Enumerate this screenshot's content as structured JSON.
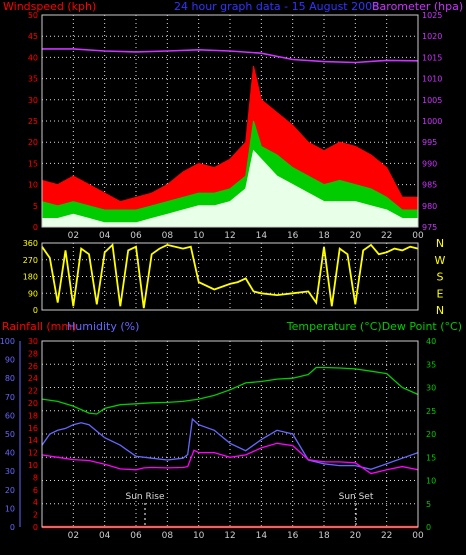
{
  "chart_data": [
    {
      "type": "area",
      "title": "24 hour graph data - 15 August 2008",
      "ylabel_left": "Windspeed (kph)",
      "ylabel_right": "Barometer (hpa)",
      "x_ticks": [
        "02",
        "04",
        "06",
        "08",
        "10",
        "12",
        "14",
        "16",
        "18",
        "20",
        "22",
        "00"
      ],
      "xlim": [
        0,
        24
      ],
      "ylim_left": [
        0,
        50
      ],
      "ylim_right": [
        975,
        1025
      ],
      "y_ticks_left": [
        0,
        5,
        10,
        15,
        20,
        25,
        30,
        35,
        40,
        45,
        50
      ],
      "y_ticks_right": [
        975,
        980,
        985,
        990,
        995,
        1000,
        1005,
        1010,
        1015,
        1020,
        1025
      ],
      "grid": true,
      "series": [
        {
          "name": "Windspeed (kph)",
          "kind": "wind_gust",
          "color": "#ff0000",
          "x": [
            0,
            1,
            2,
            3,
            4,
            5,
            6,
            7,
            8,
            9,
            10,
            11,
            12,
            13,
            13.5,
            14,
            15,
            16,
            17,
            18,
            19,
            20,
            21,
            22,
            23,
            24
          ],
          "y": [
            11,
            10,
            12,
            10,
            8,
            6,
            7,
            8,
            10,
            13,
            15,
            14,
            16,
            20,
            38,
            30,
            27,
            24,
            20,
            18,
            20,
            19,
            17,
            14,
            7,
            7
          ]
        },
        {
          "kind": "wind_avg",
          "color": "#00cc00",
          "x": [
            0,
            1,
            2,
            3,
            4,
            5,
            6,
            7,
            8,
            9,
            10,
            11,
            12,
            13,
            13.5,
            14,
            15,
            16,
            17,
            18,
            19,
            20,
            21,
            22,
            23,
            24
          ],
          "y": [
            6,
            5,
            6,
            5,
            4,
            4,
            4,
            5,
            6,
            7,
            8,
            8,
            9,
            12,
            25,
            19,
            17,
            14,
            12,
            10,
            11,
            10,
            9,
            7,
            4,
            4
          ]
        },
        {
          "kind": "wind_min",
          "color": "#e8ffe8",
          "x": [
            0,
            1,
            2,
            3,
            4,
            5,
            6,
            7,
            8,
            9,
            10,
            11,
            12,
            13,
            13.5,
            14,
            15,
            16,
            17,
            18,
            19,
            20,
            21,
            22,
            23,
            24
          ],
          "y": [
            2,
            2,
            3,
            2,
            1,
            1,
            1,
            2,
            3,
            4,
            5,
            5,
            6,
            9,
            18,
            16,
            12,
            10,
            8,
            6,
            6,
            6,
            5,
            4,
            2,
            2
          ]
        },
        {
          "name": "Barometer (hpa)",
          "axis": "right",
          "color": "#cc33ff",
          "x": [
            0,
            2,
            4,
            6,
            8,
            10,
            12,
            14,
            16,
            18,
            20,
            22,
            24
          ],
          "y": [
            1017,
            1017,
            1016.5,
            1016.3,
            1016.5,
            1016.8,
            1016.5,
            1016,
            1014.5,
            1014,
            1013.8,
            1014.3,
            1014.2
          ]
        }
      ]
    },
    {
      "type": "line",
      "ylim": [
        0,
        360
      ],
      "y_ticks": [
        0,
        90,
        180,
        270,
        360
      ],
      "x_ticks": [
        "02",
        "04",
        "06",
        "08",
        "10",
        "12",
        "14",
        "16",
        "18",
        "20",
        "22",
        "00"
      ],
      "xlim": [
        0,
        24
      ],
      "direction_labels": [
        "N",
        "W",
        "S",
        "E",
        "N"
      ],
      "series": [
        {
          "kind": "wind_direction",
          "color": "#ffff00",
          "x": [
            0,
            0.5,
            1,
            1.5,
            2,
            2.5,
            3,
            3.5,
            4,
            4.5,
            5,
            5.5,
            6,
            6.5,
            7,
            7.5,
            8,
            8.5,
            9,
            9.5,
            10,
            11,
            12,
            12.5,
            13,
            13.5,
            14,
            15,
            16,
            17,
            17.5,
            18,
            18.5,
            19,
            19.5,
            20,
            20.5,
            21,
            21.5,
            22,
            22.5,
            23,
            23.5,
            24
          ],
          "y": [
            340,
            280,
            40,
            320,
            20,
            330,
            300,
            30,
            310,
            350,
            20,
            320,
            340,
            10,
            300,
            330,
            350,
            340,
            330,
            340,
            150,
            110,
            140,
            150,
            170,
            100,
            90,
            80,
            90,
            100,
            40,
            340,
            20,
            330,
            300,
            30,
            320,
            350,
            300,
            310,
            330,
            320,
            340,
            330
          ]
        }
      ]
    },
    {
      "type": "line",
      "ylabel_left_outer": "Rainfall (mm)",
      "ylabel_left_inner": "Humidity (%)",
      "ylabel_right": "Temperature (°C)Dew Point (°C)",
      "x_ticks": [
        "02",
        "04",
        "06",
        "08",
        "10",
        "12",
        "14",
        "16",
        "18",
        "20",
        "22",
        "00"
      ],
      "xlim": [
        0,
        24
      ],
      "y_ticks_rainfall": [
        0,
        2,
        4,
        6,
        8,
        10,
        12,
        14,
        16,
        18,
        20,
        22,
        24,
        26,
        28,
        30
      ],
      "y_ticks_humidity": [
        0,
        10,
        20,
        30,
        40,
        50,
        60,
        70,
        80,
        90,
        100
      ],
      "y_ticks_temperature": [
        0,
        5,
        10,
        15,
        20,
        25,
        30,
        35,
        40
      ],
      "ylim_humidity": [
        0,
        100
      ],
      "ylim_temperature": [
        0,
        40
      ],
      "grid": true,
      "annotations": [
        {
          "text": "Sun Rise",
          "x": 6.5
        },
        {
          "text": "Sun Set",
          "x": 20.2
        }
      ],
      "series": [
        {
          "name": "Temperature (°C)",
          "axis": "temperature",
          "color": "#00cc00",
          "x": [
            0,
            1,
            2,
            3,
            3.5,
            4,
            5,
            6,
            7,
            8,
            9,
            10,
            11,
            12,
            13,
            14,
            15,
            16,
            17,
            17.5,
            18,
            19,
            20,
            21,
            22,
            23,
            24
          ],
          "y": [
            27.5,
            27,
            26,
            24.5,
            24.3,
            25.5,
            26.3,
            26.5,
            26.7,
            26.8,
            27,
            27.5,
            28.3,
            29.5,
            31,
            31.3,
            31.8,
            32,
            32.8,
            34.3,
            34.3,
            34.2,
            34,
            33.5,
            33,
            30,
            28.5
          ]
        },
        {
          "name": "Dew Point (°C)",
          "axis": "temperature",
          "color": "#ff00ff",
          "x": [
            0,
            1,
            2,
            3,
            4,
            5,
            6,
            6.5,
            7,
            8,
            9,
            9.3,
            9.7,
            10,
            11,
            12,
            13,
            14,
            15,
            16,
            17,
            18,
            19,
            20,
            21,
            22,
            23,
            24
          ],
          "y": [
            15.5,
            15,
            14.5,
            14.3,
            13.5,
            12.5,
            12.3,
            12.7,
            12.8,
            12.7,
            12.8,
            13,
            16.5,
            16,
            16,
            15,
            15.5,
            17,
            18,
            17.5,
            14.5,
            14,
            14,
            13.8,
            11.5,
            12.3,
            13,
            12.3
          ]
        },
        {
          "name": "Humidity (%)",
          "axis": "humidity",
          "color": "#6666ff",
          "x": [
            0,
            0.5,
            1,
            1.5,
            2,
            2.5,
            3,
            4,
            5,
            6,
            7,
            8,
            9,
            9.3,
            9.6,
            10,
            11,
            12,
            13,
            14,
            15,
            16,
            17,
            18,
            19,
            20,
            21,
            22,
            23,
            24
          ],
          "y": [
            44,
            50,
            52,
            53,
            55,
            56,
            55,
            48,
            44,
            38,
            37,
            36,
            37,
            39,
            58,
            55,
            52,
            45,
            41,
            47,
            52,
            50,
            36,
            34,
            33,
            33,
            31,
            34,
            37,
            40
          ]
        },
        {
          "name": "Rainfall (mm)",
          "axis": "rainfall",
          "color": "#ff0000",
          "x": [
            0,
            24
          ],
          "y": [
            0,
            0
          ]
        }
      ]
    }
  ]
}
